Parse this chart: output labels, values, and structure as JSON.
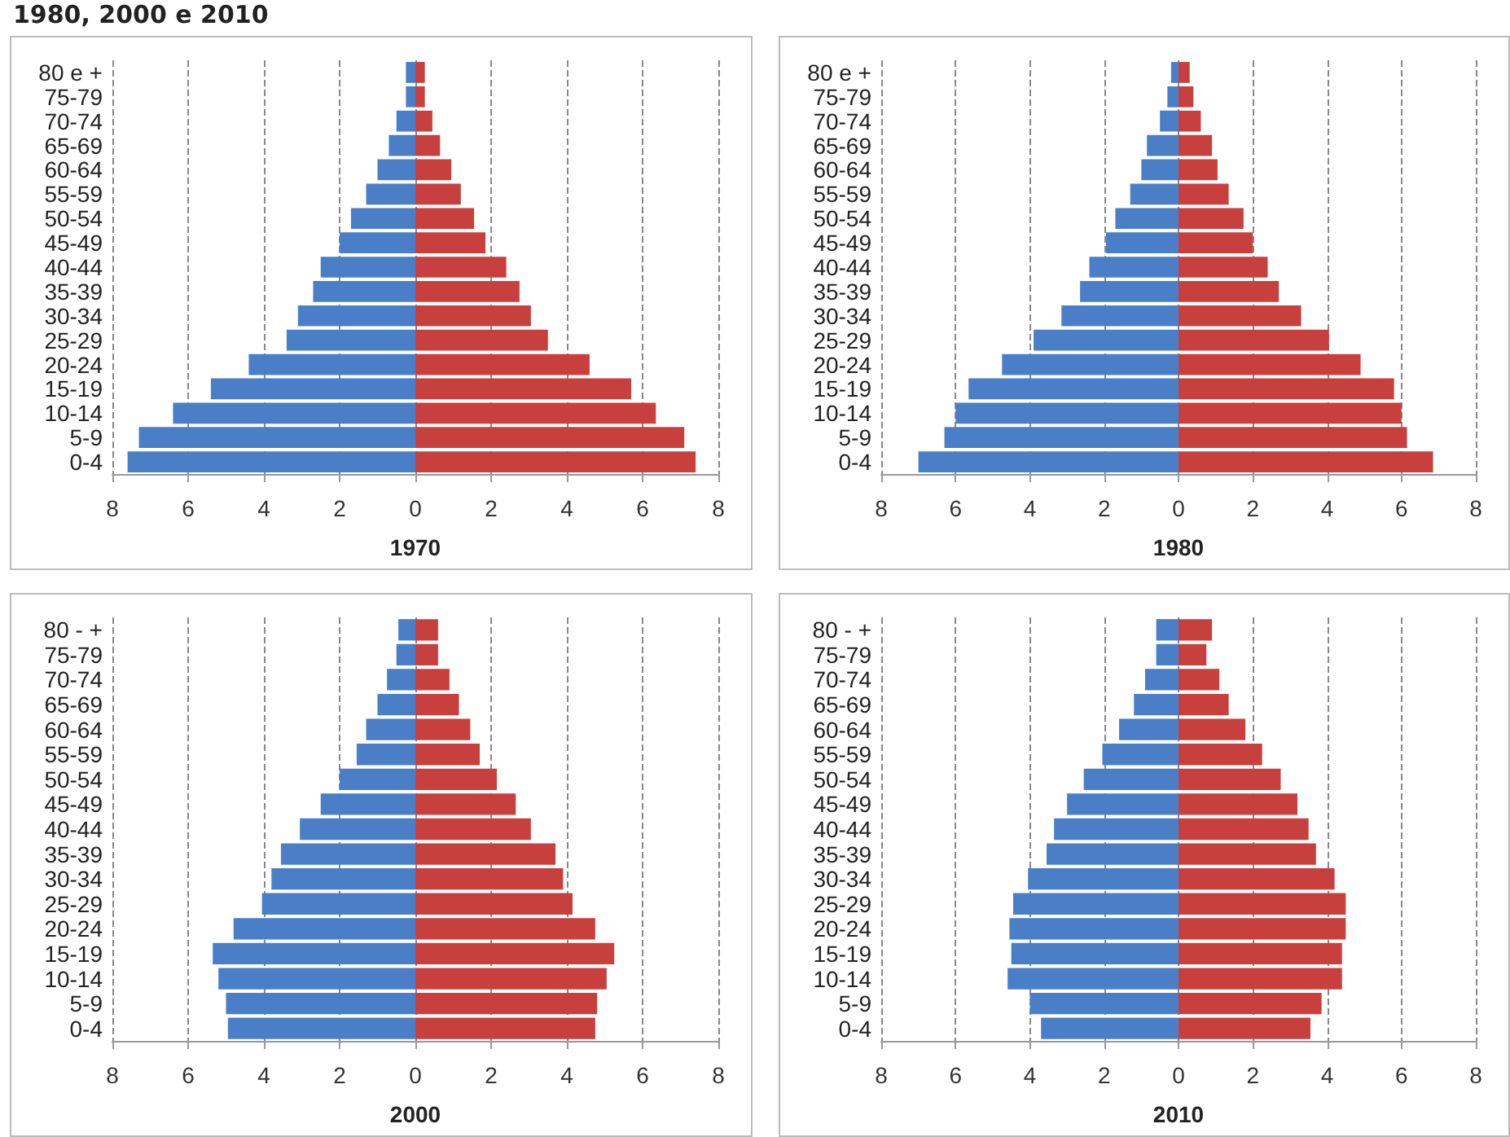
{
  "chart_data": [
    {
      "type": "bar",
      "orientation": "horizontal",
      "stacked": true,
      "title": "1980, 2000 e 2010",
      "xlabel": "1970",
      "grid": "x",
      "line_style": "dashed",
      "categories": [
        "80 e +",
        "75-79",
        "70-74",
        "65-69",
        "60-64",
        "55-59",
        "50-54",
        "45-49",
        "40-44",
        "35-39",
        "30-34",
        "25-29",
        "20-24",
        "15-19",
        "10-14",
        "5-9",
        "0-4"
      ],
      "xlim": [
        -8,
        8
      ],
      "xticks": [
        {
          "value": -8,
          "label": "8"
        },
        {
          "value": -6,
          "label": "6"
        },
        {
          "value": -4,
          "label": "4"
        },
        {
          "value": -2,
          "label": "2"
        },
        0,
        2,
        4,
        6,
        8
      ],
      "series": [
        {
          "color": "#4a7fc8",
          "values": [
            -0.25,
            -0.25,
            -0.5,
            -0.7,
            -1.0,
            -1.3,
            -1.7,
            -2.0,
            -2.5,
            -2.7,
            -3.1,
            -3.4,
            -4.4,
            -5.4,
            -6.4,
            -7.3,
            -7.6
          ]
        },
        {
          "color": "#c8403e",
          "values": [
            0.25,
            0.25,
            0.45,
            0.65,
            0.95,
            1.2,
            1.55,
            1.85,
            2.4,
            2.75,
            3.05,
            3.5,
            4.6,
            5.7,
            6.35,
            7.1,
            7.4
          ]
        }
      ]
    },
    {
      "type": "bar",
      "orientation": "horizontal",
      "stacked": true,
      "xlabel": "1980",
      "grid": "x",
      "line_style": "dashed",
      "categories": [
        "80 e +",
        "75-79",
        "70-74",
        "65-69",
        "60-64",
        "55-59",
        "50-54",
        "45-49",
        "40-44",
        "35-39",
        "30-34",
        "25-29",
        "20-24",
        "15-19",
        "10-14",
        "5-9",
        "0-4"
      ],
      "xlim": [
        -8,
        8
      ],
      "xticks": [
        {
          "value": -8,
          "label": "8"
        },
        {
          "value": -6,
          "label": "6"
        },
        {
          "value": -4,
          "label": "4"
        },
        {
          "value": -2,
          "label": "2"
        },
        0,
        2,
        4,
        6,
        8
      ],
      "series": [
        {
          "color": "#4a7fc8",
          "values": [
            -0.2,
            -0.3,
            -0.5,
            -0.85,
            -1.0,
            -1.3,
            -1.7,
            -1.95,
            -2.4,
            -2.65,
            -3.15,
            -3.9,
            -4.75,
            -5.65,
            -6.0,
            -6.3,
            -7.0
          ]
        },
        {
          "color": "#c8403e",
          "values": [
            0.3,
            0.4,
            0.6,
            0.9,
            1.05,
            1.35,
            1.75,
            2.0,
            2.4,
            2.7,
            3.3,
            4.05,
            4.9,
            5.8,
            6.0,
            6.15,
            6.85
          ]
        }
      ]
    },
    {
      "type": "bar",
      "orientation": "horizontal",
      "stacked": true,
      "xlabel": "2000",
      "grid": "x",
      "line_style": "dashed",
      "categories": [
        "80 - +",
        "75-79",
        "70-74",
        "65-69",
        "60-64",
        "55-59",
        "50-54",
        "45-49",
        "40-44",
        "35-39",
        "30-34",
        "25-29",
        "20-24",
        "15-19",
        "10-14",
        "5-9",
        "0-4"
      ],
      "xlim": [
        -8,
        8
      ],
      "xticks": [
        {
          "value": -8,
          "label": "8"
        },
        {
          "value": -6,
          "label": "6"
        },
        {
          "value": -4,
          "label": "4"
        },
        {
          "value": -2,
          "label": "2"
        },
        0,
        2,
        4,
        6,
        8
      ],
      "series": [
        {
          "color": "#4a7fc8",
          "values": [
            -0.45,
            -0.5,
            -0.75,
            -1.0,
            -1.3,
            -1.55,
            -2.0,
            -2.5,
            -3.05,
            -3.55,
            -3.8,
            -4.05,
            -4.8,
            -5.35,
            -5.2,
            -5.0,
            -4.95
          ]
        },
        {
          "color": "#c8403e",
          "values": [
            0.6,
            0.6,
            0.9,
            1.15,
            1.45,
            1.7,
            2.15,
            2.65,
            3.05,
            3.7,
            3.9,
            4.15,
            4.75,
            5.25,
            5.05,
            4.8,
            4.75
          ]
        }
      ]
    },
    {
      "type": "bar",
      "orientation": "horizontal",
      "stacked": true,
      "xlabel": "2010",
      "grid": "x",
      "line_style": "dashed",
      "categories": [
        "80 - +",
        "75-79",
        "70-74",
        "65-69",
        "60-64",
        "55-59",
        "50-54",
        "45-49",
        "40-44",
        "35-39",
        "30-34",
        "25-29",
        "20-24",
        "15-19",
        "10-14",
        "5-9",
        "0-4"
      ],
      "xlim": [
        -8,
        8
      ],
      "xticks": [
        {
          "value": -8,
          "label": "8"
        },
        {
          "value": -6,
          "label": "6"
        },
        {
          "value": -4,
          "label": "4"
        },
        {
          "value": -2,
          "label": "2"
        },
        0,
        2,
        4,
        6,
        8
      ],
      "series": [
        {
          "color": "#4a7fc8",
          "values": [
            -0.6,
            -0.6,
            -0.9,
            -1.2,
            -1.6,
            -2.05,
            -2.55,
            -3.0,
            -3.35,
            -3.55,
            -4.05,
            -4.45,
            -4.55,
            -4.5,
            -4.6,
            -4.0,
            -3.7
          ]
        },
        {
          "color": "#c8403e",
          "values": [
            0.9,
            0.75,
            1.1,
            1.35,
            1.8,
            2.25,
            2.75,
            3.2,
            3.5,
            3.7,
            4.2,
            4.5,
            4.5,
            4.4,
            4.4,
            3.85,
            3.55
          ]
        }
      ]
    }
  ]
}
